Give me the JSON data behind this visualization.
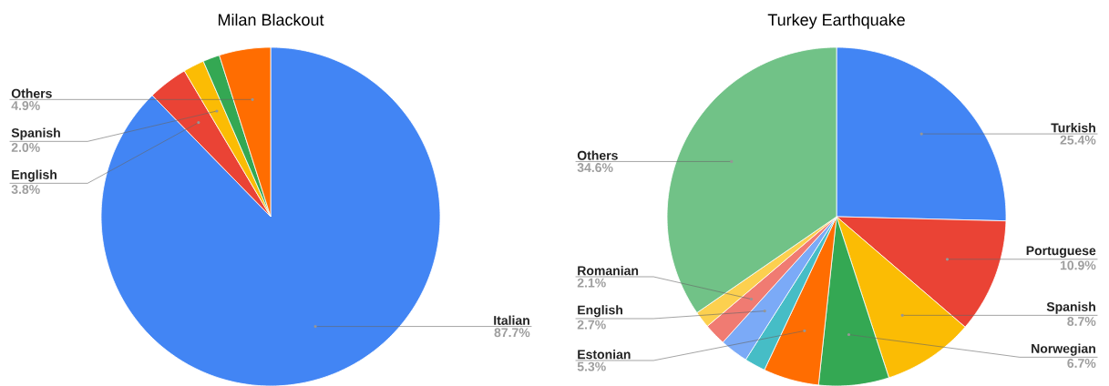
{
  "chart_data": [
    {
      "type": "pie",
      "title": "Milan Blackout",
      "categories": [
        "Italian",
        "English",
        "Spanish",
        null,
        "Others"
      ],
      "values": [
        87.7,
        3.8,
        2.0,
        1.6,
        4.9
      ],
      "value_labels": [
        "87.7%",
        "3.8%",
        "2.0%",
        null,
        "4.9%"
      ],
      "colors": [
        "#4285f4",
        "#ea4335",
        "#fbbc04",
        "#34a853",
        "#ff6d01"
      ]
    },
    {
      "type": "pie",
      "title": "Turkey Earthquake",
      "categories": [
        "Turkish",
        "Portuguese",
        "Spanish",
        "Norwegian",
        "Estonian",
        null,
        "English",
        "Romanian",
        null,
        "Others"
      ],
      "values": [
        25.4,
        10.9,
        8.7,
        6.7,
        5.3,
        2.0,
        2.7,
        2.1,
        1.6,
        34.6
      ],
      "value_labels": [
        "25.4%",
        "10.9%",
        "8.7%",
        "6.7%",
        "5.3%",
        null,
        "2.7%",
        "2.1%",
        null,
        "34.6%"
      ],
      "colors": [
        "#4285f4",
        "#ea4335",
        "#fbbc04",
        "#34a853",
        "#ff6d01",
        "#46bdc6",
        "#7baaf7",
        "#f07b72",
        "#fcd04f",
        "#71c287"
      ]
    }
  ]
}
